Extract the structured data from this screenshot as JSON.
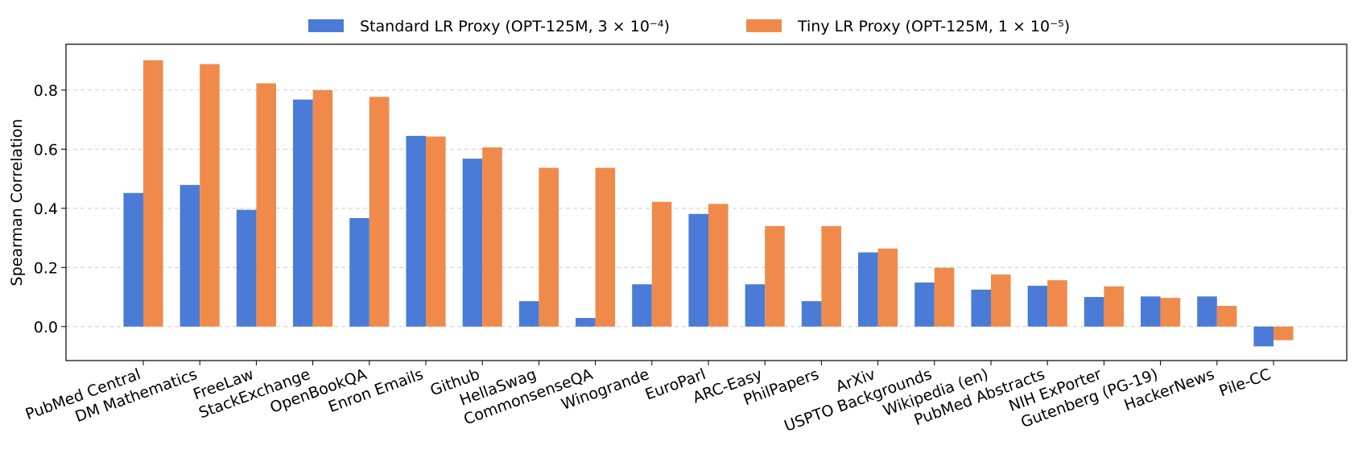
{
  "chart_data": {
    "type": "bar",
    "title": "",
    "xlabel": "",
    "ylabel": "Spearman Correlation",
    "ylim": [
      -0.115,
      0.955
    ],
    "yticks": [
      0.0,
      0.2,
      0.4,
      0.6,
      0.8
    ],
    "ytick_labels": [
      "0.0",
      "0.2",
      "0.4",
      "0.6",
      "0.8"
    ],
    "grid": "horizontal dashed",
    "legend_position": "top-center, above plot",
    "categories": [
      "PubMed Central",
      "DM Mathematics",
      "FreeLaw",
      "StackExchange",
      "OpenBookQA",
      "Enron Emails",
      "Github",
      "HellaSwag",
      "CommonsenseQA",
      "Winogrande",
      "EuroParl",
      "ARC-Easy",
      "PhilPapers",
      "ArXiv",
      "USPTO Backgrounds",
      "Wikipedia (en)",
      "PubMed Abstracts",
      "NIH ExPorter",
      "Gutenberg (PG-19)",
      "HackerNews",
      "Pile-CC"
    ],
    "series": [
      {
        "name": "Standard LR Proxy (OPT-125M, 3 × 10⁻⁴)",
        "color": "#4a7bd6",
        "values": [
          0.452,
          0.479,
          0.395,
          0.768,
          0.367,
          0.645,
          0.568,
          0.086,
          0.029,
          0.143,
          0.381,
          0.143,
          0.086,
          0.251,
          0.149,
          0.125,
          0.138,
          0.1,
          0.102,
          0.102,
          -0.067
        ]
      },
      {
        "name": "Tiny LR Proxy (OPT-125M, 1 × 10⁻⁵)",
        "color": "#f08a4b",
        "values": [
          0.901,
          0.888,
          0.823,
          0.8,
          0.777,
          0.643,
          0.606,
          0.537,
          0.537,
          0.422,
          0.415,
          0.34,
          0.34,
          0.264,
          0.199,
          0.176,
          0.157,
          0.136,
          0.097,
          0.07,
          -0.046
        ]
      }
    ]
  }
}
